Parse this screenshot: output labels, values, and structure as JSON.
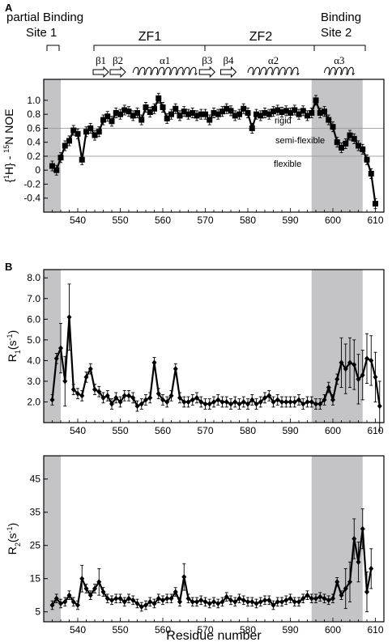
{
  "panel_labels": [
    "A",
    "B"
  ],
  "top": {
    "site1": "partial Binding\nSite 1",
    "site2": "Binding\nSite 2",
    "zf1": "ZF1",
    "zf2": "ZF2",
    "strands": [
      "β1",
      "β2",
      "β3",
      "β4"
    ],
    "helices": [
      "α1",
      "α2",
      "α3"
    ]
  },
  "colors": {
    "shade": "#c4c4c6",
    "line": "#000000",
    "grid": "#9a9a9a"
  },
  "chart_data": [
    {
      "type": "line",
      "panel": "A",
      "ylabel": "{1H} - 15N NOE",
      "xlabel": "",
      "xlim": [
        532,
        612
      ],
      "ylim": [
        -0.6,
        1.3
      ],
      "yticks": [
        -0.4,
        -0.2,
        0,
        0.2,
        0.4,
        0.6,
        0.8,
        1.0
      ],
      "xticks": [
        540,
        550,
        560,
        570,
        580,
        590,
        600,
        610
      ],
      "shaded_regions": [
        [
          532,
          536
        ],
        [
          595,
          607
        ]
      ],
      "reference_lines": [
        {
          "y": 0.6,
          "label": "rigid"
        },
        {
          "y": 0.2,
          "label": "semi-flexible"
        },
        {
          "label": "flexible"
        }
      ],
      "x": [
        534,
        535,
        536,
        537,
        538,
        539,
        540,
        541,
        542,
        543,
        544,
        545,
        546,
        547,
        548,
        549,
        550,
        551,
        552,
        553,
        554,
        555,
        556,
        557,
        558,
        559,
        560,
        561,
        562,
        563,
        564,
        565,
        566,
        567,
        568,
        569,
        570,
        571,
        572,
        573,
        574,
        575,
        576,
        577,
        578,
        579,
        580,
        581,
        582,
        583,
        584,
        585,
        586,
        587,
        588,
        589,
        590,
        591,
        592,
        593,
        594,
        595,
        596,
        597,
        598,
        599,
        600,
        601,
        602,
        603,
        604,
        605,
        606,
        607,
        608,
        609,
        610
      ],
      "y": [
        0.06,
        0.0,
        0.18,
        0.35,
        0.42,
        0.57,
        0.52,
        0.15,
        0.55,
        0.6,
        0.5,
        0.55,
        0.72,
        0.77,
        0.7,
        0.82,
        0.8,
        0.86,
        0.84,
        0.78,
        0.82,
        0.72,
        0.9,
        0.83,
        0.88,
        1.03,
        0.9,
        0.74,
        0.8,
        0.88,
        0.78,
        0.84,
        0.8,
        0.82,
        0.78,
        0.8,
        0.8,
        0.72,
        0.82,
        0.8,
        0.84,
        0.88,
        0.85,
        0.78,
        0.8,
        0.88,
        0.82,
        0.6,
        0.8,
        0.78,
        0.82,
        0.8,
        0.84,
        0.86,
        0.83,
        0.85,
        0.82,
        0.86,
        0.8,
        0.85,
        0.78,
        0.82,
        1.0,
        0.82,
        0.84,
        0.72,
        0.62,
        0.4,
        0.32,
        0.38,
        0.5,
        0.45,
        0.35,
        0.3,
        0.15,
        -0.05,
        -0.48
      ],
      "err": 0.07
    },
    {
      "type": "line",
      "panel": "B-top",
      "ylabel": "R1(s-1)",
      "xlabel": "",
      "xlim": [
        532,
        612
      ],
      "ylim": [
        1.0,
        8.4
      ],
      "yticks": [
        2.0,
        3.0,
        4.0,
        5.0,
        6.0,
        7.0,
        8.0
      ],
      "xticks": [
        540,
        550,
        560,
        570,
        580,
        590,
        600,
        610
      ],
      "shaded_regions": [
        [
          532,
          536
        ],
        [
          595,
          607
        ]
      ],
      "x": [
        534,
        535,
        536,
        537,
        538,
        539,
        540,
        541,
        542,
        543,
        544,
        545,
        546,
        547,
        548,
        549,
        550,
        551,
        552,
        553,
        554,
        555,
        556,
        557,
        558,
        559,
        560,
        561,
        562,
        563,
        564,
        565,
        566,
        567,
        568,
        569,
        570,
        571,
        572,
        573,
        574,
        575,
        576,
        577,
        578,
        579,
        580,
        581,
        582,
        583,
        584,
        585,
        586,
        587,
        588,
        589,
        590,
        591,
        592,
        593,
        594,
        595,
        596,
        597,
        598,
        599,
        600,
        601,
        602,
        603,
        604,
        605,
        606,
        607,
        608,
        609,
        610,
        611
      ],
      "y": [
        2.1,
        4.1,
        4.6,
        3.0,
        6.1,
        2.6,
        2.4,
        2.3,
        3.2,
        3.6,
        2.6,
        2.5,
        2.2,
        2.3,
        1.9,
        2.2,
        2.0,
        2.3,
        2.3,
        2.2,
        1.8,
        1.9,
        2.1,
        2.2,
        3.9,
        2.4,
        2.1,
        2.0,
        2.3,
        3.6,
        2.2,
        2.0,
        2.0,
        2.1,
        2.2,
        2.0,
        1.9,
        1.9,
        2.0,
        2.1,
        2.0,
        2.0,
        1.9,
        2.0,
        1.9,
        2.0,
        1.9,
        2.1,
        1.9,
        2.0,
        2.2,
        2.3,
        2.0,
        2.1,
        2.0,
        2.0,
        2.0,
        2.0,
        2.1,
        1.9,
        2.0,
        2.0,
        1.9,
        1.9,
        2.1,
        2.7,
        2.1,
        3.1,
        3.9,
        3.6,
        3.9,
        3.8,
        3.1,
        3.3,
        4.1,
        4.0,
        3.2,
        1.8
      ],
      "err": 0.25
    },
    {
      "type": "line",
      "panel": "B-bottom",
      "ylabel": "R2(s-1)",
      "xlabel": "Residue number",
      "xlim": [
        532,
        612
      ],
      "ylim": [
        2,
        52
      ],
      "yticks": [
        5,
        15,
        25,
        35,
        45
      ],
      "xticks": [
        540,
        550,
        560,
        570,
        580,
        590,
        600,
        610
      ],
      "shaded_regions": [
        [
          532,
          536
        ],
        [
          595,
          607
        ]
      ],
      "x": [
        534,
        535,
        536,
        537,
        538,
        539,
        540,
        541,
        542,
        543,
        544,
        545,
        546,
        547,
        548,
        549,
        550,
        551,
        552,
        553,
        554,
        555,
        556,
        557,
        558,
        559,
        560,
        561,
        562,
        563,
        564,
        565,
        566,
        567,
        568,
        569,
        570,
        571,
        572,
        573,
        574,
        575,
        576,
        577,
        578,
        579,
        580,
        581,
        582,
        583,
        584,
        585,
        586,
        587,
        588,
        589,
        590,
        591,
        592,
        593,
        594,
        595,
        596,
        597,
        598,
        599,
        600,
        601,
        602,
        603,
        604,
        605,
        606,
        607,
        608,
        609
      ],
      "y": [
        7,
        9,
        7.5,
        8,
        10,
        8,
        7,
        15,
        12,
        10,
        12,
        14,
        11,
        9,
        8.5,
        9,
        9,
        8,
        9,
        8.5,
        7.5,
        6.5,
        7,
        8,
        7.5,
        9,
        8.5,
        9,
        9,
        11,
        8,
        15.5,
        9,
        8,
        8,
        8.5,
        8,
        7.5,
        8,
        7.5,
        8,
        9.5,
        8.5,
        8,
        9,
        8.5,
        8,
        8,
        7.5,
        8,
        8.5,
        8.5,
        7,
        8,
        8,
        8.5,
        9,
        8,
        8,
        9,
        10,
        9,
        9,
        9.5,
        9,
        8.5,
        9,
        14,
        10,
        12,
        14,
        27,
        20,
        30,
        11,
        18
      ],
      "err": 1.3
    }
  ]
}
